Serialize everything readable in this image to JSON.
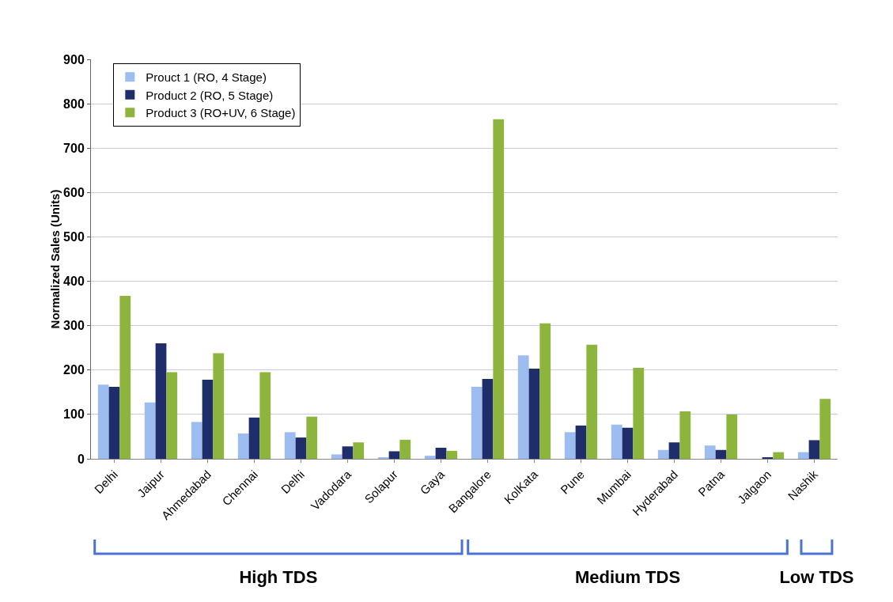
{
  "chart_data": {
    "type": "bar",
    "ylabel": "Normalized Sales (Units)",
    "categories": [
      "Delhi",
      "Jaipur",
      "Ahmedabad",
      "Chennai",
      "Delhi",
      "Vadodara",
      "Solapur",
      "Gaya",
      "Bangalore",
      "KolKata",
      "Pune",
      "Mumbai",
      "Hyderabad",
      "Patna",
      "Jalgaon",
      "Nashik"
    ],
    "series": [
      {
        "name": "Prouct 1 (RO, 4 Stage)",
        "color": "#9dbdf0",
        "values": [
          167,
          127,
          83,
          57,
          60,
          10,
          3,
          7,
          162,
          233,
          60,
          77,
          20,
          30,
          0,
          15
        ]
      },
      {
        "name": "Product 2 (RO, 5 Stage)",
        "color": "#1f2d6b",
        "values": [
          162,
          260,
          178,
          93,
          48,
          28,
          17,
          25,
          180,
          203,
          75,
          70,
          37,
          20,
          3,
          42
        ]
      },
      {
        "name": "Product 3 (RO+UV, 6 Stage)",
        "color": "#8db43c",
        "values": [
          367,
          195,
          238,
          195,
          95,
          37,
          43,
          18,
          765,
          305,
          257,
          205,
          107,
          100,
          15,
          135
        ]
      }
    ],
    "ylim": [
      0,
      900
    ],
    "yticks": [
      0,
      100,
      200,
      300,
      400,
      500,
      600,
      700,
      800,
      900
    ],
    "grid": "y",
    "legend": "top left",
    "annotations": [
      "High TDS",
      "Medium TDS",
      "Low TDS"
    ]
  }
}
